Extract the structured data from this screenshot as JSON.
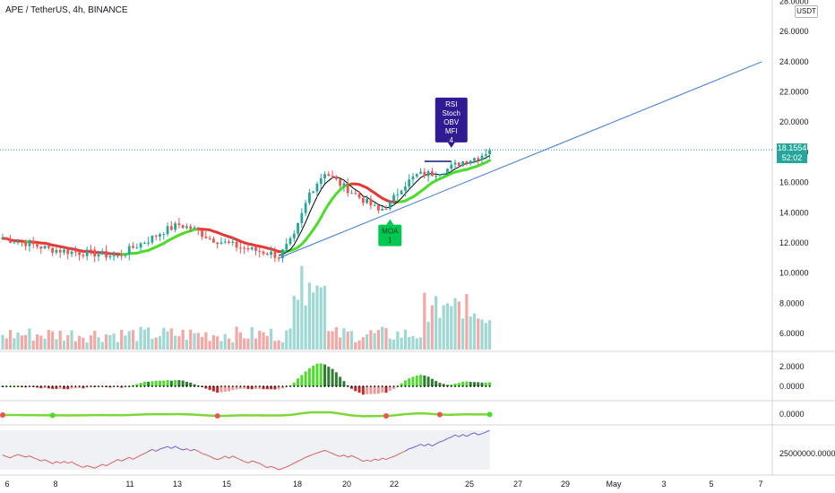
{
  "header": {
    "symbol_title": "APE / TetherUS, 4h, BINANCE",
    "currency_badge": "USDT"
  },
  "last_price": {
    "value": "18.1554",
    "countdown": "52:02"
  },
  "labels": {
    "signal_label": [
      "RSI",
      "Stoch",
      "OBV",
      "MFI",
      "4"
    ],
    "signal_label_color": "#311b92",
    "moa_label": [
      "MOA",
      "1"
    ],
    "moa_label_color": "#00c853"
  },
  "colors": {
    "up": "#26a69a",
    "down": "#ef5350",
    "vol_up": "#9ed8d2",
    "vol_down": "#f4a8a6",
    "ma_red": "#e53935",
    "ma_green": "#4cdc2c",
    "ma_black": "#000000",
    "trend": "#3c78d8",
    "obv": "#6461d8",
    "grid": "#e9ecf2",
    "last_line": "#26a69a"
  },
  "chart_data": {
    "type": "candlestick",
    "title": "APE / TetherUS, 4h, BINANCE",
    "x_ticks": [
      "6",
      "8",
      "11",
      "13",
      "15",
      "18",
      "20",
      "22",
      "25",
      "27",
      "29",
      "May",
      "3",
      "5",
      "7"
    ],
    "price_axis": {
      "ticks": [
        "28.0000",
        "26.0000",
        "24.0000",
        "22.0000",
        "20.0000",
        "18.0000",
        "16.0000",
        "14.0000",
        "12.0000",
        "10.0000",
        "8.0000",
        "6.0000"
      ]
    },
    "osc_axis": {
      "ticks": [
        "2.0000",
        "0.0000"
      ]
    },
    "momentum_axis": {
      "ticks": [
        "0.0000"
      ]
    },
    "obv_axis": {
      "ticks": [
        "25000000.0000"
      ]
    },
    "last_close": 18.1554,
    "close_path": [
      [
        0,
        12.3
      ],
      [
        6,
        12.0
      ],
      [
        12,
        11.6
      ],
      [
        18,
        11.4
      ],
      [
        24,
        11.3
      ],
      [
        30,
        11.1
      ],
      [
        34,
        11.7
      ],
      [
        38,
        12.2
      ],
      [
        42,
        12.8
      ],
      [
        46,
        13.2
      ],
      [
        50,
        12.9
      ],
      [
        54,
        12.3
      ],
      [
        58,
        12.0
      ],
      [
        62,
        11.7
      ],
      [
        66,
        11.5
      ],
      [
        70,
        11.3
      ],
      [
        72,
        11.1
      ],
      [
        76,
        12.4
      ],
      [
        80,
        15.3
      ],
      [
        84,
        16.7
      ],
      [
        88,
        15.9
      ],
      [
        92,
        15.2
      ],
      [
        96,
        14.5
      ],
      [
        98,
        14.1
      ],
      [
        101,
        14.6
      ],
      [
        104,
        15.7
      ],
      [
        108,
        16.5
      ],
      [
        112,
        16.6
      ],
      [
        116,
        16.9
      ],
      [
        120,
        17.4
      ],
      [
        124,
        17.7
      ],
      [
        127,
        18.16
      ]
    ],
    "trend_line": {
      "from": [
        72,
        11.0
      ],
      "to": [
        198,
        24.0
      ]
    },
    "signals": [
      {
        "text": "RSI Stoch OBV MFI 4",
        "at_bar": 117,
        "price": 18.3,
        "position": "above"
      },
      {
        "text": "MOA 1",
        "at_bar": 101,
        "price": 13.8,
        "position": "below"
      }
    ],
    "legend": "none",
    "grid": false
  }
}
